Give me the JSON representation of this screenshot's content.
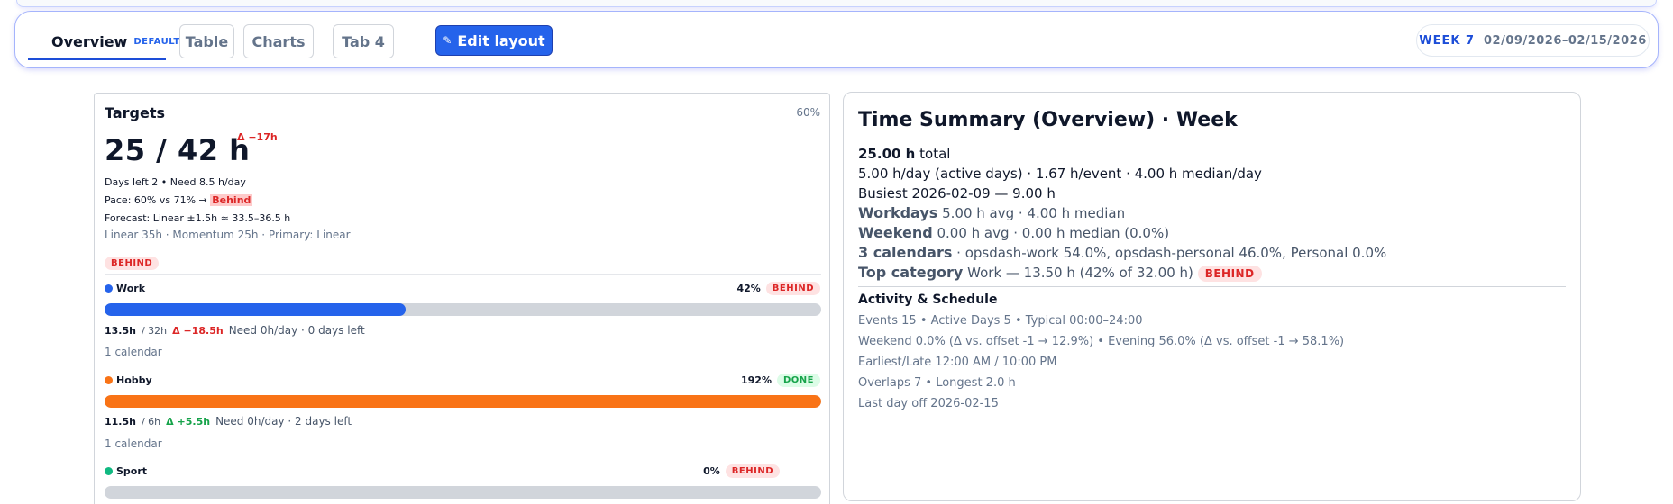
{
  "toolbar": {
    "tabs": [
      {
        "label": "Overview",
        "badge": "DEFAULT"
      },
      {
        "label": "Table"
      },
      {
        "label": "Charts"
      },
      {
        "label": "Tab 4"
      }
    ],
    "edit_label": "Edit layout",
    "edit_icon": "✎",
    "week_label": "WEEK 7",
    "week_range": "02/09/2026–02/15/2026"
  },
  "targets": {
    "title": "Targets",
    "percent": "60%",
    "big": "25 / 42 h",
    "delta": "Δ −17h",
    "days_left": "Days left 2 • Need 8.5 h/day",
    "pace_prefix": "Pace: 60% vs 71% →",
    "pace_status": "Behind",
    "forecast": "Forecast: Linear ±1.5h ≈ 33.5–36.5 h",
    "models": "Linear 35h · Momentum 25h · Primary: Linear",
    "status": "BEHIND",
    "categories": [
      {
        "name": "Work",
        "color": "#2563eb",
        "percent": "42%",
        "status": "BEHIND",
        "status_kind": "behind",
        "progress": 0.42,
        "done": "13.5h",
        "target": "/ 32h",
        "delta": "Δ −18.5h",
        "delta_kind": "neg",
        "need": "Need 0h/day · 0 days left",
        "calendars": "1 calendar"
      },
      {
        "name": "Hobby",
        "color": "#f97316",
        "percent": "192%",
        "status": "DONE",
        "status_kind": "done",
        "progress": 1.0,
        "done": "11.5h",
        "target": "/ 6h",
        "delta": "Δ +5.5h",
        "delta_kind": "pos",
        "need": "Need 0h/day · 2 days left",
        "calendars": "1 calendar"
      },
      {
        "name": "Sport",
        "color": "#10b981",
        "percent": "0%",
        "status": "BEHIND",
        "status_kind": "behind",
        "progress": 0.0
      }
    ]
  },
  "summary": {
    "title": "Time Summary (Overview) · Week",
    "total_value": "25.00 h",
    "total_label": "total",
    "rates": "5.00 h/day (active days) · 1.67 h/event · 4.00 h median/day",
    "busiest": "Busiest 2026-02-09 — 9.00 h",
    "workdays_label": "Workdays",
    "workdays_value": "5.00 h avg · 4.00 h median",
    "weekend_label": "Weekend",
    "weekend_value": "0.00 h avg · 0.00 h median (0.0%)",
    "calendars_label": "3 calendars",
    "calendars_value": "· opsdash-work 54.0%, opsdash-personal 46.0%, Personal 0.0%",
    "topcat_label": "Top category",
    "topcat_value": "Work — 13.50 h (42% of 32.00 h)",
    "topcat_status": "BEHIND",
    "activity_title": "Activity & Schedule",
    "activity": [
      "Events 15 • Active Days 5 • Typical 00:00–24:00",
      "Weekend 0.0%  (Δ vs. offset -1 → 12.9%)  • Evening 56.0%  (Δ vs. offset -1 → 58.1%)",
      "Earliest/Late 12:00 AM / 10:00 PM",
      "Overlaps 7 • Longest 2.0 h",
      "Last day off 2026-02-15"
    ]
  }
}
